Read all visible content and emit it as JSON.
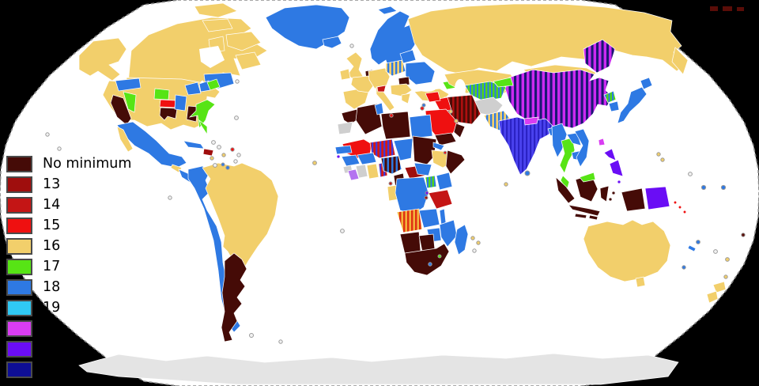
{
  "figure": {
    "description": "World choropleth map (Robinson projection) showing minimum-age categories per country",
    "background_outside_map": "#000000",
    "ocean_color": "#ffffff",
    "map_border_color": "#8a8a8a",
    "no_data_color": "#cfcfcf",
    "antarctica_color": "#e4e4e4"
  },
  "legend": {
    "items": [
      {
        "label": "No minimum",
        "color": "#450b07"
      },
      {
        "label": "13",
        "color": "#9f0e0d"
      },
      {
        "label": "14",
        "color": "#c41515"
      },
      {
        "label": "15",
        "color": "#ef1010"
      },
      {
        "label": "16",
        "color": "#f2cf6b"
      },
      {
        "label": "17",
        "color": "#57e415"
      },
      {
        "label": "18",
        "color": "#2e79e3"
      },
      {
        "label": "19",
        "color": "#30c9f4"
      },
      {
        "label": "",
        "color": "#d93df2"
      },
      {
        "label": "",
        "color": "#6a0df5"
      },
      {
        "label": "",
        "color": "#0e0e95"
      }
    ]
  },
  "regions": [
    {
      "name": "canada",
      "category": "16"
    },
    {
      "name": "alaska",
      "category": "16"
    },
    {
      "name": "usa",
      "category": "varies-by-state"
    },
    {
      "name": "greenland",
      "category": "18"
    },
    {
      "name": "iceland",
      "category": "18"
    },
    {
      "name": "mexico",
      "category": "18"
    },
    {
      "name": "central-america",
      "category": "18"
    },
    {
      "name": "cuba",
      "category": "18"
    },
    {
      "name": "hispaniola",
      "category": "13"
    },
    {
      "name": "colombia-ecuador-peru-chile",
      "category": "18"
    },
    {
      "name": "brazil-venezuela-bolivia-paraguay",
      "category": "16"
    },
    {
      "name": "argentina",
      "category": "no-minimum"
    },
    {
      "name": "uk-ireland",
      "category": "16"
    },
    {
      "name": "france-spain-germany",
      "category": "16"
    },
    {
      "name": "denmark",
      "category": "no-minimum"
    },
    {
      "name": "poland",
      "category": "striped-16-18"
    },
    {
      "name": "scandinavia",
      "category": "18"
    },
    {
      "name": "baltics-ukraine-belarus",
      "category": "18"
    },
    {
      "name": "italy",
      "category": "16-and-14"
    },
    {
      "name": "balkans-greece-turkey",
      "category": "16"
    },
    {
      "name": "russia",
      "category": "16"
    },
    {
      "name": "kazakhstan-mongolia",
      "category": "16"
    },
    {
      "name": "caucasus",
      "category": "17"
    },
    {
      "name": "uzbekistan-turkmenistan",
      "category": "striped-17-18"
    },
    {
      "name": "kyrgyzstan",
      "category": "17"
    },
    {
      "name": "afghanistan",
      "category": "no-data"
    },
    {
      "name": "iran",
      "category": "striped-no-minimum-13"
    },
    {
      "name": "iraq-syria-saudi-arabia",
      "category": "15"
    },
    {
      "name": "yemen-oman",
      "category": "no-minimum"
    },
    {
      "name": "pakistan",
      "category": "striped-16-18"
    },
    {
      "name": "india",
      "category": "striped-18-21"
    },
    {
      "name": "nepal",
      "category": "20"
    },
    {
      "name": "bangladesh-myanmar-laos-cambodia-vietnam",
      "category": "18"
    },
    {
      "name": "thailand-malaysia",
      "category": "17"
    },
    {
      "name": "china",
      "category": "striped-20-21"
    },
    {
      "name": "north-korea",
      "category": "striped-17-18"
    },
    {
      "name": "south-korea-japan",
      "category": "18"
    },
    {
      "name": "taiwan",
      "category": "20"
    },
    {
      "name": "philippines",
      "category": "21"
    },
    {
      "name": "indonesia",
      "category": "no-minimum"
    },
    {
      "name": "papua-new-guinea",
      "category": "21"
    },
    {
      "name": "australia-new-zealand",
      "category": "16"
    },
    {
      "name": "morocco-algeria-libya",
      "category": "no-minimum"
    },
    {
      "name": "tunisia-egypt-chad",
      "category": "18"
    },
    {
      "name": "western-sahara-mauritania-ivory-coast",
      "category": "no-data"
    },
    {
      "name": "mali",
      "category": "15"
    },
    {
      "name": "niger",
      "category": "striped-14-18"
    },
    {
      "name": "sudan-somalia-cameroon",
      "category": "no-minimum"
    },
    {
      "name": "ethiopia-ghana-gabon",
      "category": "16"
    },
    {
      "name": "nigeria",
      "category": "striped-no-minimum-18"
    },
    {
      "name": "central-african-republic",
      "category": "13"
    },
    {
      "name": "drc-kenya-zambia-mozambique-madagascar",
      "category": "18"
    },
    {
      "name": "uganda",
      "category": "striped-17-18"
    },
    {
      "name": "tanzania",
      "category": "14"
    },
    {
      "name": "angola",
      "category": "striped-15-16"
    },
    {
      "name": "namibia-botswana-south-africa",
      "category": "no-minimum"
    },
    {
      "name": "antarctica",
      "category": "no-data"
    }
  ]
}
